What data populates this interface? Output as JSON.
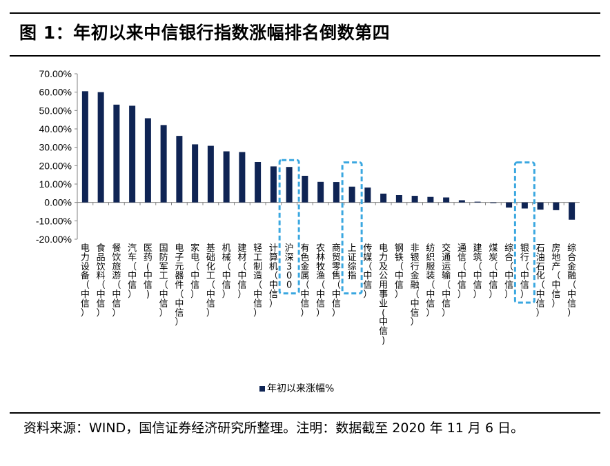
{
  "figure_title": "图 1：年初以来中信银行指数涨幅排名倒数第四",
  "source_note": "资料来源：WIND，国信证券经济研究所整理。注明：数据截至 2020 年 11 月 6 日。",
  "colors": {
    "bar": "#0f2454",
    "highlight_box": "#3aa7e0",
    "axis": "#808080"
  },
  "chart_data": {
    "type": "bar",
    "title": "",
    "xlabel": "",
    "ylabel": "",
    "ylim": [
      -20,
      70
    ],
    "yticks": [
      -20,
      -10,
      0,
      10,
      20,
      30,
      40,
      50,
      60,
      70
    ],
    "ytick_labels": [
      "-20.00%",
      "-10.00%",
      "0.00%",
      "10.00%",
      "20.00%",
      "30.00%",
      "40.00%",
      "50.00%",
      "60.00%",
      "70.00%"
    ],
    "grid": false,
    "legend_position": "bottom",
    "series": [
      {
        "name": "年初以来涨幅%",
        "values": [
          60.5,
          60.0,
          53.2,
          52.6,
          45.8,
          42.1,
          36.2,
          31.6,
          30.8,
          27.8,
          27.4,
          22.0,
          19.6,
          19.3,
          14.5,
          11.2,
          11.1,
          8.6,
          8.1,
          4.8,
          4.0,
          3.6,
          3.0,
          2.7,
          1.2,
          0.4,
          -0.3,
          -2.8,
          -3.3,
          -3.9,
          -4.2,
          -9.4
        ]
      }
    ],
    "categories": [
      "电力设备（中信）",
      "食品饮料（中信）",
      "餐饮旅游（中信）",
      "汽车（中信）",
      "医药(中信)",
      "国防军工（中信）",
      "电子元器件（中信）",
      "家电（中信）",
      "基础化工（中信）",
      "机械（中信）",
      "建材（中信）",
      "轻工制造（中信）",
      "计算机（中信）",
      "沪深300",
      "有色金属（中信）",
      "农林牧渔（中信）",
      "商贸零售（中信）",
      "上证综指",
      "传媒（中信）",
      "电力及公用事业(中信)",
      "钢铁（中信）",
      "非银行金融（中信）",
      "纺织服装（中信）",
      "交通运输（中信）",
      "通信（中信）",
      "建筑（中信）",
      "煤炭（中信）",
      "综合（中信）",
      "银行（中信）",
      "石油石化（中信）",
      "房地产（中信）",
      "综合金融（中信）"
    ],
    "highlighted": [
      "沪深300",
      "上证综指",
      "银行（中信）"
    ]
  }
}
